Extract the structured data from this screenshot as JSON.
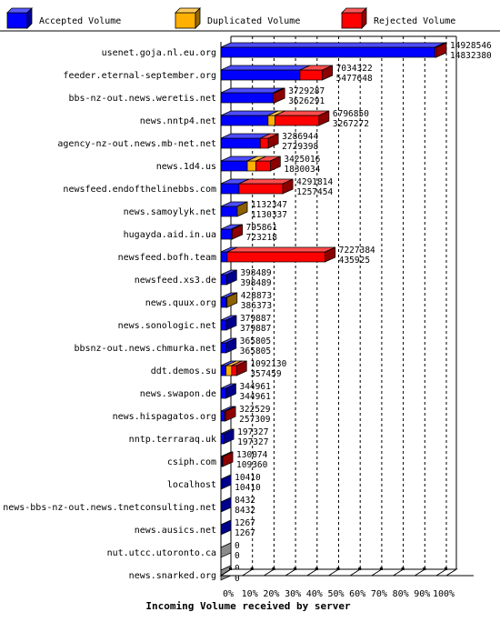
{
  "legend": [
    {
      "label": "Accepted Volume",
      "color": "#0000ff"
    },
    {
      "label": "Duplicated Volume",
      "color": "#ffb000"
    },
    {
      "label": "Rejected Volume",
      "color": "#ff0000"
    }
  ],
  "chart_data": {
    "type": "bar",
    "orientation": "horizontal",
    "stacked": true,
    "title": "",
    "xlabel": "Incoming Volume received by server",
    "xlim": [
      0,
      100
    ],
    "x_ticks": [
      "0%",
      "10%",
      "20%",
      "30%",
      "40%",
      "50%",
      "60%",
      "70%",
      "80%",
      "90%",
      "100%"
    ],
    "x_tick_values": [
      0,
      10,
      20,
      30,
      40,
      50,
      60,
      70,
      80,
      90,
      100
    ],
    "grid": "vertical dashed",
    "legend_position": "top",
    "series": [
      {
        "name": "Accepted Volume",
        "color": "#0000ff"
      },
      {
        "name": "Duplicated Volume",
        "color": "#ffb000"
      },
      {
        "name": "Rejected Volume",
        "color": "#ff0000"
      }
    ],
    "rows": [
      {
        "server": "usenet.goja.nl.eu.org",
        "total": "14928546",
        "accepted": "14832380",
        "acc": 99.36,
        "dup": 0,
        "rej": 0.64
      },
      {
        "server": "feeder.eternal-september.org",
        "total": "7034322",
        "accepted": "5477648",
        "acc": 36.69,
        "dup": 0,
        "rej": 10.43
      },
      {
        "server": "bbs-nz-out.news.weretis.net",
        "total": "3729287",
        "accepted": "3626291",
        "acc": 24.29,
        "dup": 0,
        "rej": 0.69
      },
      {
        "server": "news.nntp4.net",
        "total": "6796850",
        "accepted": "3267272",
        "acc": 21.89,
        "dup": 3.2,
        "rej": 20.44
      },
      {
        "server": "agency-nz-out.news.mb-net.net",
        "total": "3286944",
        "accepted": "2729398",
        "acc": 18.28,
        "dup": 0,
        "rej": 3.73
      },
      {
        "server": "news.1d4.us",
        "total": "3425016",
        "accepted": "1830034",
        "acc": 12.26,
        "dup": 4.0,
        "rej": 6.68
      },
      {
        "server": "newsfeed.endofthelinebbs.com",
        "total": "4291814",
        "accepted": "1257454",
        "acc": 8.42,
        "dup": 0,
        "rej": 20.33
      },
      {
        "server": "news.samoylyk.net",
        "total": "1132347",
        "accepted": "1130337",
        "acc": 7.57,
        "dup": 0.01,
        "rej": 0
      },
      {
        "server": "hugayda.aid.in.ua",
        "total": "795861",
        "accepted": "723218",
        "acc": 4.84,
        "dup": 0,
        "rej": 0.49
      },
      {
        "server": "newsfeed.bofh.team",
        "total": "7227384",
        "accepted": "435925",
        "acc": 2.92,
        "dup": 0,
        "rej": 45.49
      },
      {
        "server": "newsfeed.xs3.de",
        "total": "398489",
        "accepted": "398489",
        "acc": 2.67,
        "dup": 0,
        "rej": 0
      },
      {
        "server": "news.quux.org",
        "total": "428873",
        "accepted": "386373",
        "acc": 2.59,
        "dup": 0.28,
        "rej": 0
      },
      {
        "server": "news.sonologic.net",
        "total": "379887",
        "accepted": "379887",
        "acc": 2.54,
        "dup": 0,
        "rej": 0
      },
      {
        "server": "bbsnz-out.news.chmurka.net",
        "total": "365805",
        "accepted": "365805",
        "acc": 2.45,
        "dup": 0,
        "rej": 0
      },
      {
        "server": "ddt.demos.su",
        "total": "1092130",
        "accepted": "357459",
        "acc": 2.39,
        "dup": 2.6,
        "rej": 2.3
      },
      {
        "server": "news.swapon.de",
        "total": "344961",
        "accepted": "344961",
        "acc": 2.31,
        "dup": 0,
        "rej": 0
      },
      {
        "server": "news.hispagatos.org",
        "total": "322529",
        "accepted": "257309",
        "acc": 1.72,
        "dup": 0,
        "rej": 0.44
      },
      {
        "server": "nntp.terraraq.uk",
        "total": "197327",
        "accepted": "197327",
        "acc": 1.32,
        "dup": 0,
        "rej": 0
      },
      {
        "server": "csiph.com",
        "total": "130074",
        "accepted": "109360",
        "acc": 0.73,
        "dup": 0,
        "rej": 0.14
      },
      {
        "server": "localhost",
        "total": "10410",
        "accepted": "10410",
        "acc": 0.07,
        "dup": 0,
        "rej": 0
      },
      {
        "server": "news-bbs-nz-out.news.tnetconsulting.net",
        "total": "8432",
        "accepted": "8432",
        "acc": 0.06,
        "dup": 0,
        "rej": 0
      },
      {
        "server": "news.ausics.net",
        "total": "1267",
        "accepted": "1267",
        "acc": 0.01,
        "dup": 0,
        "rej": 0
      },
      {
        "server": "nut.utcc.utoronto.ca",
        "total": "0",
        "accepted": "0",
        "acc": 0,
        "dup": 0,
        "rej": 0
      },
      {
        "server": "news.snarked.org",
        "total": "0",
        "accepted": "0",
        "acc": 0,
        "dup": 0,
        "rej": 0
      }
    ]
  }
}
